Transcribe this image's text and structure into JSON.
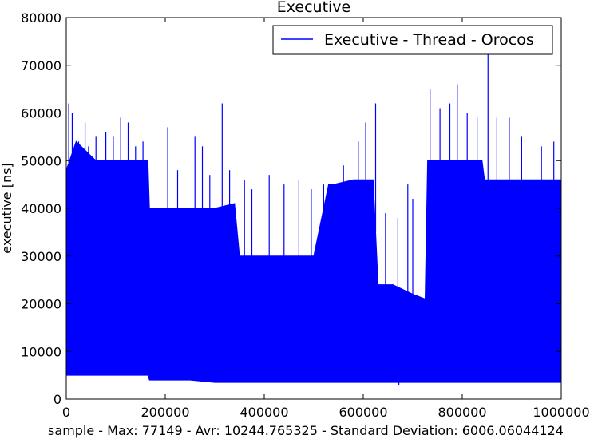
{
  "chart_data": {
    "type": "line",
    "title": "Executive",
    "xlabel": "sample - Max: 77149 - Avr: 10244.765325 - Standard Deviation: 6006.06044124",
    "ylabel": "executive [ns]",
    "xlim": [
      0,
      1000000
    ],
    "ylim": [
      0,
      80000
    ],
    "x_ticks": [
      "0",
      "200000",
      "400000",
      "600000",
      "800000",
      "1000000"
    ],
    "y_ticks": [
      "0",
      "10000",
      "20000",
      "30000",
      "40000",
      "50000",
      "60000",
      "70000",
      "80000"
    ],
    "grid": false,
    "legend": {
      "position": "top-right",
      "entries": [
        "Executive - Thread - Orocos"
      ]
    },
    "series": [
      {
        "name": "Executive - Thread - Orocos",
        "color": "#0000ff",
        "envelope_x": [
          0,
          20000,
          60000,
          100000,
          140000,
          165000,
          168000,
          200000,
          250000,
          300000,
          340000,
          350000,
          400000,
          450000,
          500000,
          530000,
          540000,
          580000,
          620000,
          630000,
          660000,
          700000,
          725000,
          730000,
          780000,
          840000,
          845000,
          900000,
          950000,
          1000000
        ],
        "envelope_high": [
          48000,
          54000,
          50000,
          50000,
          50000,
          50000,
          40000,
          40000,
          40000,
          40000,
          41000,
          30000,
          30000,
          30000,
          30000,
          45000,
          45000,
          46000,
          46000,
          24000,
          24000,
          22000,
          21000,
          50000,
          50000,
          50000,
          46000,
          46000,
          46000,
          46000
        ],
        "envelope_low": [
          5000,
          5000,
          5000,
          5000,
          5000,
          5000,
          4000,
          4000,
          4000,
          3500,
          3500,
          3500,
          3500,
          3500,
          3500,
          3500,
          3500,
          3500,
          3500,
          3500,
          3500,
          3500,
          3500,
          3500,
          3500,
          3500,
          3500,
          3500,
          3500,
          3500
        ],
        "spikes": [
          [
            5000,
            62000
          ],
          [
            12000,
            60000
          ],
          [
            25000,
            54000
          ],
          [
            38000,
            58000
          ],
          [
            45000,
            53000
          ],
          [
            60000,
            55000
          ],
          [
            80000,
            56000
          ],
          [
            95000,
            55000
          ],
          [
            110000,
            59000
          ],
          [
            125000,
            58000
          ],
          [
            140000,
            53000
          ],
          [
            155000,
            54000
          ],
          [
            205000,
            57000
          ],
          [
            225000,
            48000
          ],
          [
            260000,
            55000
          ],
          [
            275000,
            53000
          ],
          [
            290000,
            47000
          ],
          [
            315000,
            62000
          ],
          [
            330000,
            48000
          ],
          [
            360000,
            46000
          ],
          [
            375000,
            44000
          ],
          [
            410000,
            47000
          ],
          [
            440000,
            45000
          ],
          [
            470000,
            46000
          ],
          [
            495000,
            44000
          ],
          [
            520000,
            45000
          ],
          [
            560000,
            49000
          ],
          [
            590000,
            54000
          ],
          [
            605000,
            58000
          ],
          [
            625000,
            62000
          ],
          [
            645000,
            39000
          ],
          [
            670000,
            38000
          ],
          [
            690000,
            45000
          ],
          [
            700000,
            42000
          ],
          [
            735000,
            65000
          ],
          [
            755000,
            61000
          ],
          [
            775000,
            62000
          ],
          [
            790000,
            66000
          ],
          [
            810000,
            60000
          ],
          [
            830000,
            59000
          ],
          [
            852000,
            77149
          ],
          [
            870000,
            59000
          ],
          [
            895000,
            59000
          ],
          [
            920000,
            55000
          ],
          [
            960000,
            53000
          ],
          [
            985000,
            54000
          ]
        ],
        "dips": [
          [
            672000,
            3000
          ],
          [
            695000,
            11000
          ]
        ]
      }
    ]
  }
}
